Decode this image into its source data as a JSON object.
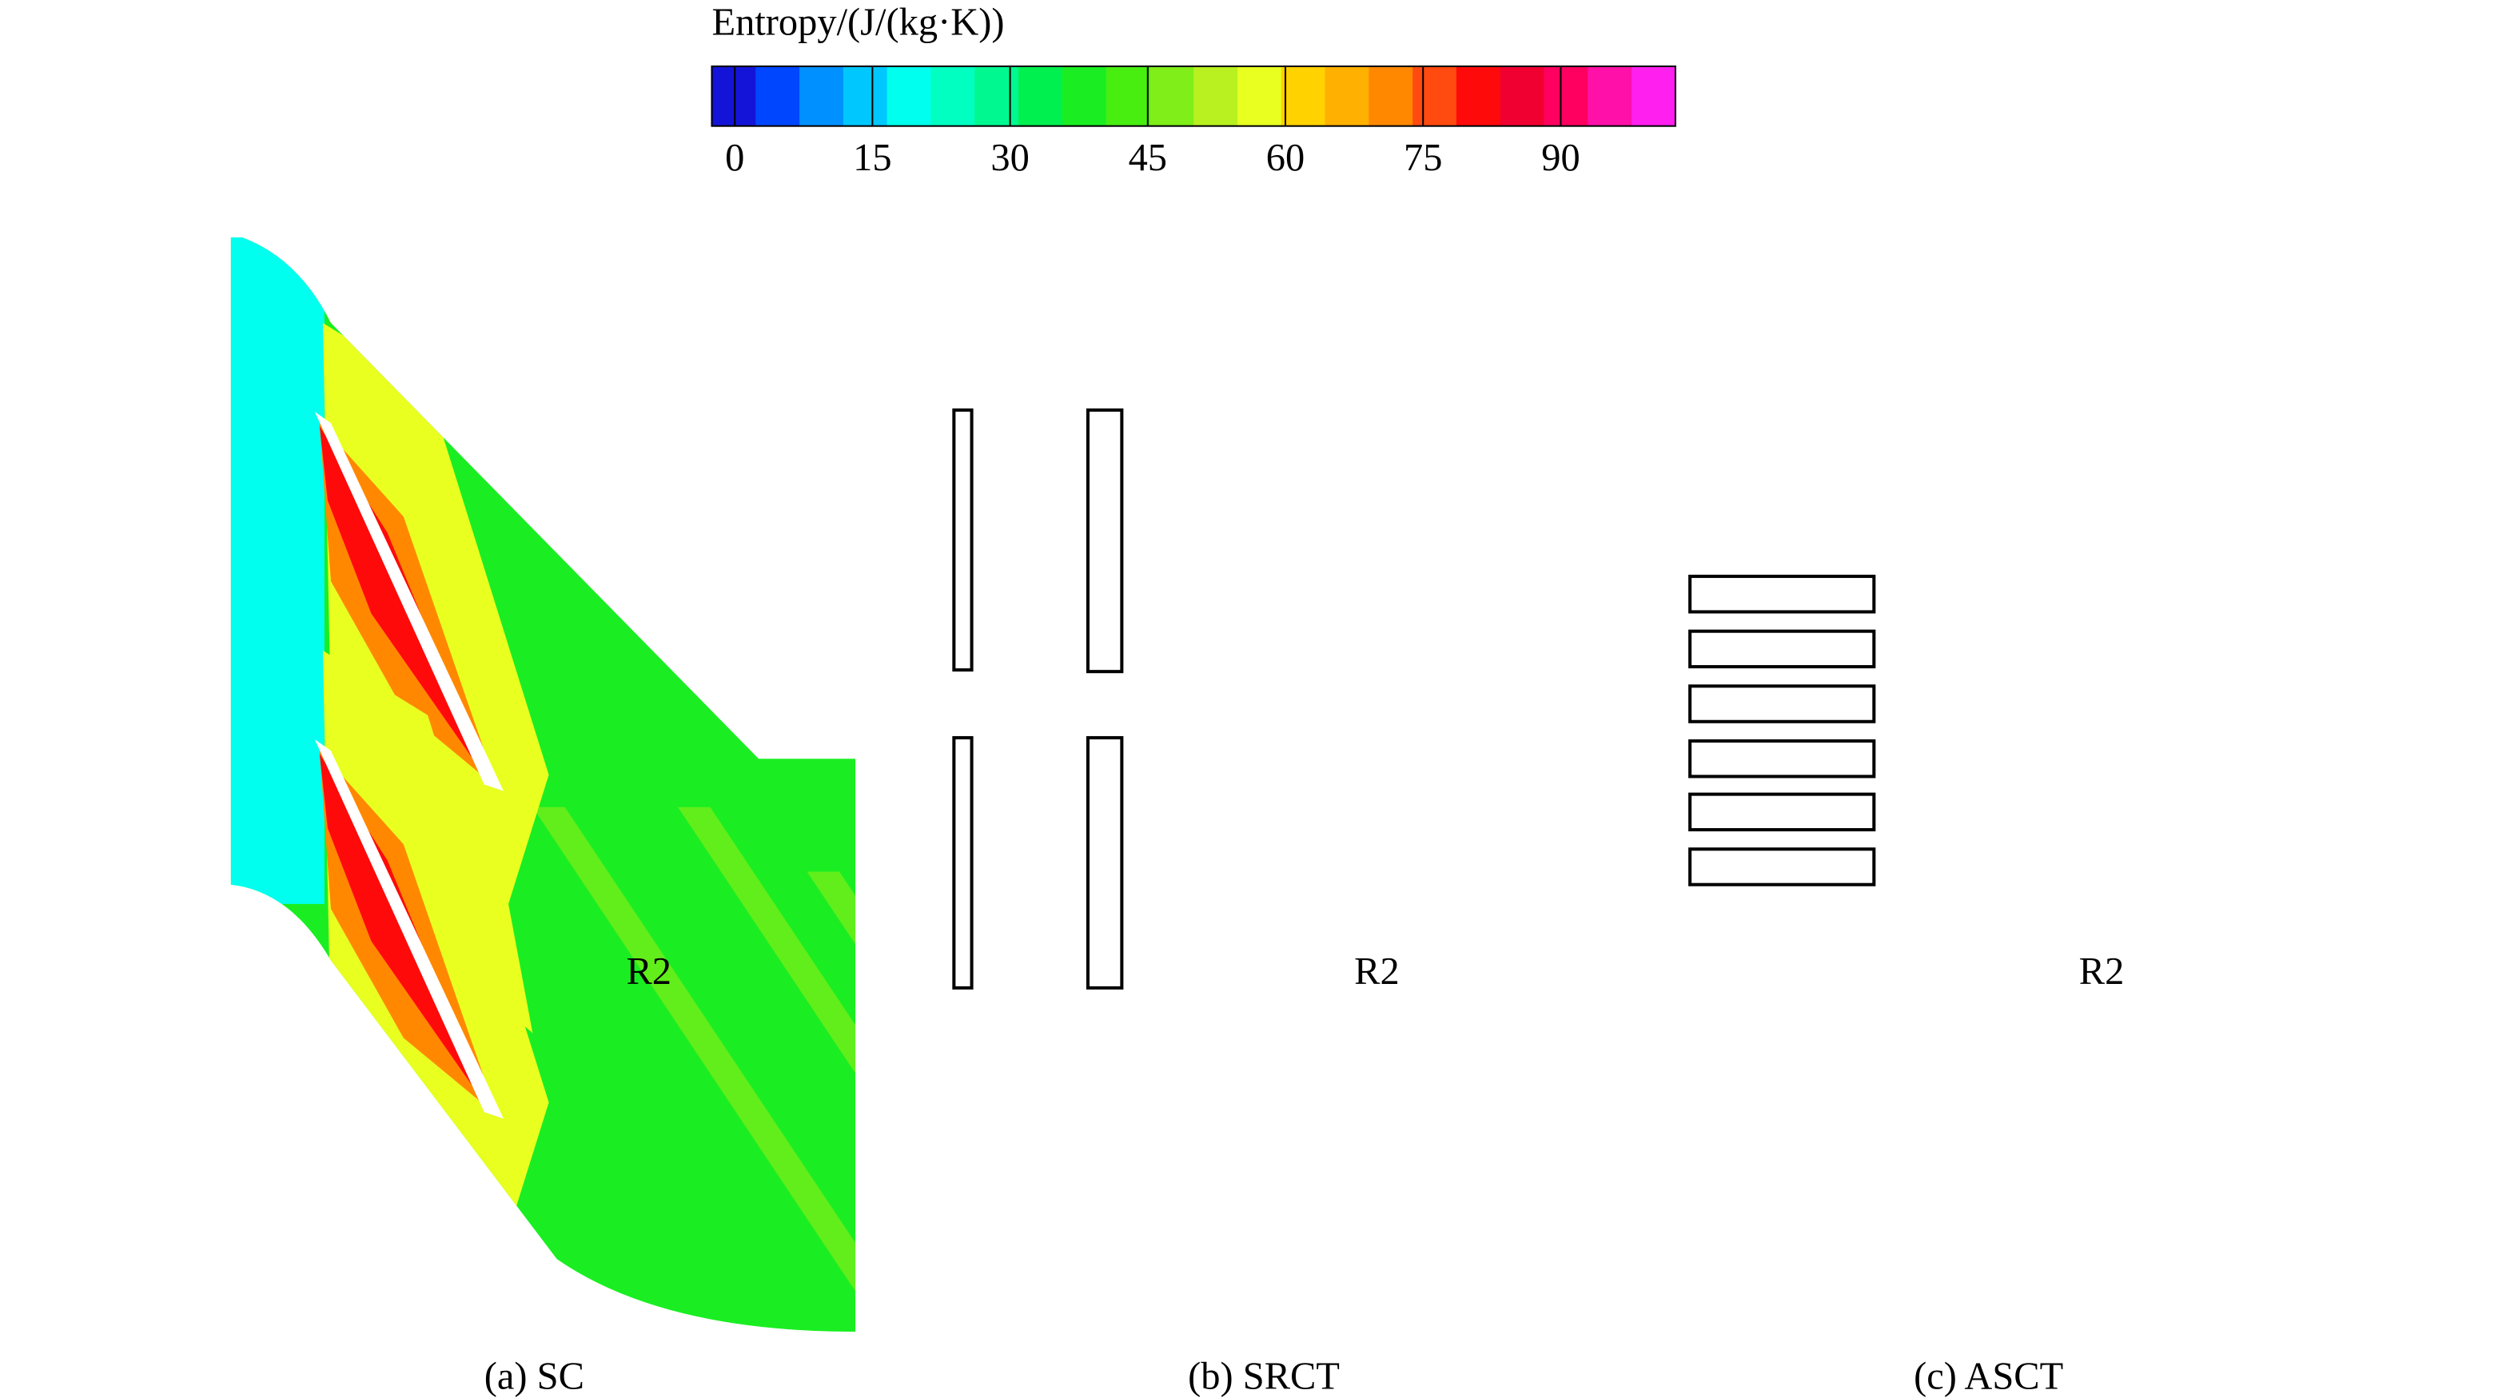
{
  "chart_data": {
    "type": "contour",
    "colorbar": {
      "title": "Entropy/(J/(kg·K))",
      "lim": [
        -2.5,
        102.5
      ],
      "ticks": [
        0,
        15,
        30,
        45,
        60,
        75,
        90
      ],
      "colors": [
        "#1414d8",
        "#0046ff",
        "#0090ff",
        "#00c8ff",
        "#00ffee",
        "#00ffc0",
        "#00f890",
        "#00f050",
        "#1aee22",
        "#48ee10",
        "#80ee18",
        "#b8f020",
        "#e8ff20",
        "#ffd200",
        "#ffb000",
        "#ff8800",
        "#ff4a10",
        "#ff0a0a",
        "#f00030",
        "#ff0060",
        "#ff10a8",
        "#ff20f0"
      ]
    },
    "panels": [
      {
        "caption": "(a) SC",
        "label": "R2"
      },
      {
        "caption": "(b) SRCT",
        "label": "R2"
      },
      {
        "caption": "(c) ASCT",
        "label": "R2"
      }
    ]
  }
}
